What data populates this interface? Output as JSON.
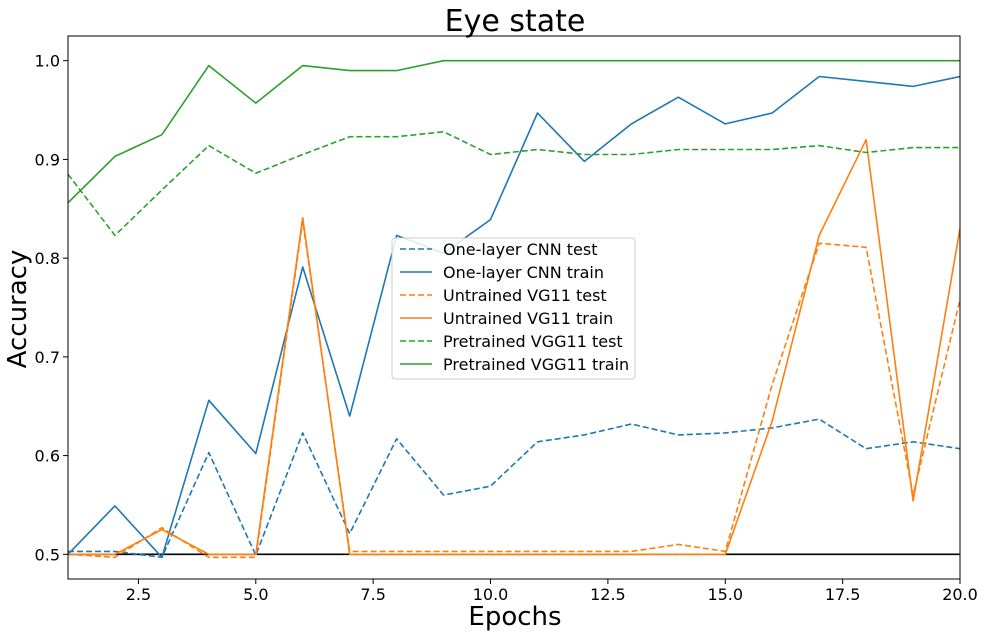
{
  "chart_data": {
    "type": "line",
    "title": "Eye state",
    "xlabel": "Epochs",
    "ylabel": "Accuracy",
    "xlim": [
      1,
      20
    ],
    "ylim": [
      0.475,
      1.025
    ],
    "xticks": [
      2.5,
      5.0,
      7.5,
      10.0,
      12.5,
      15.0,
      17.5,
      20.0
    ],
    "xtick_labels": [
      "2.5",
      "5.0",
      "7.5",
      "10.0",
      "12.5",
      "15.0",
      "17.5",
      "20.0"
    ],
    "yticks": [
      0.5,
      0.6,
      0.7,
      0.8,
      0.9,
      1.0
    ],
    "ytick_labels": [
      "0.5",
      "0.6",
      "0.7",
      "0.8",
      "0.9",
      "1.0"
    ],
    "grid": false,
    "legend_position": "center",
    "reference_line": {
      "y": 0.5,
      "color": "#000000"
    },
    "x": [
      1,
      2,
      3,
      4,
      5,
      6,
      7,
      8,
      9,
      10,
      11,
      12,
      13,
      14,
      15,
      16,
      17,
      18,
      19,
      20
    ],
    "series": [
      {
        "name": "One-layer CNN test",
        "color": "#1f77b4",
        "dash": "dashed",
        "values": [
          0.503,
          0.503,
          0.497,
          0.603,
          0.499,
          0.623,
          0.521,
          0.617,
          0.56,
          0.569,
          0.614,
          0.621,
          0.632,
          0.621,
          0.623,
          0.628,
          0.637,
          0.607,
          0.614,
          0.607
        ]
      },
      {
        "name": "One-layer CNN train",
        "color": "#1f77b4",
        "dash": "solid",
        "values": [
          0.5,
          0.549,
          0.497,
          0.656,
          0.602,
          0.791,
          0.64,
          0.823,
          0.805,
          0.839,
          0.947,
          0.898,
          0.936,
          0.963,
          0.936,
          0.947,
          0.984,
          0.979,
          0.974,
          0.984
        ]
      },
      {
        "name": "Untrained VG11 test",
        "color": "#ff7f0e",
        "dash": "dashed",
        "values": [
          0.5,
          0.497,
          0.527,
          0.497,
          0.497,
          0.838,
          0.503,
          0.503,
          0.503,
          0.503,
          0.503,
          0.503,
          0.503,
          0.51,
          0.503,
          0.672,
          0.815,
          0.811,
          0.56,
          0.758
        ]
      },
      {
        "name": "Untrained VG11 train",
        "color": "#ff7f0e",
        "dash": "solid",
        "values": [
          0.5,
          0.5,
          0.525,
          0.5,
          0.5,
          0.841,
          0.5,
          0.5,
          0.5,
          0.5,
          0.5,
          0.5,
          0.5,
          0.5,
          0.5,
          0.635,
          0.823,
          0.92,
          0.554,
          0.83
        ]
      },
      {
        "name": "Pretrained VGG11 test",
        "color": "#2ca02c",
        "dash": "dashed",
        "values": [
          0.885,
          0.823,
          0.869,
          0.914,
          0.886,
          0.905,
          0.923,
          0.923,
          0.928,
          0.905,
          0.91,
          0.905,
          0.905,
          0.91,
          0.91,
          0.91,
          0.914,
          0.907,
          0.912,
          0.912
        ]
      },
      {
        "name": "Pretrained VGG11 train",
        "color": "#2ca02c",
        "dash": "solid",
        "values": [
          0.856,
          0.903,
          0.925,
          0.995,
          0.957,
          0.995,
          0.99,
          0.99,
          1.0,
          1.0,
          1.0,
          1.0,
          1.0,
          1.0,
          1.0,
          1.0,
          1.0,
          1.0,
          1.0,
          1.0
        ]
      }
    ]
  }
}
